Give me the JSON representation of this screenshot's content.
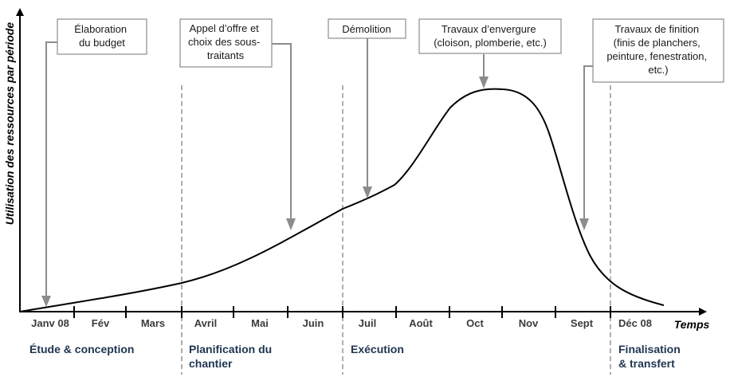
{
  "y_axis_title": "Utilisation des ressources par période",
  "x_axis_title": "Temps",
  "months": [
    "Janv 08",
    "Fév",
    "Mars",
    "Avril",
    "Mai",
    "Juin",
    "Juil",
    "Août",
    "Oct",
    "Nov",
    "Sept",
    "Déc 08"
  ],
  "phases": [
    {
      "lines": [
        "Étude & conception"
      ]
    },
    {
      "lines": [
        "Planification du",
        "chantier"
      ]
    },
    {
      "lines": [
        "Exécution"
      ]
    },
    {
      "lines": [
        "Finalisation",
        "& transfert"
      ]
    }
  ],
  "annotations": [
    {
      "lines": [
        "Élaboration",
        "du budget"
      ]
    },
    {
      "lines": [
        "Appel d’offre et",
        "choix des sous-",
        "traitants"
      ]
    },
    {
      "lines": [
        "Démolition"
      ]
    },
    {
      "lines": [
        "Travaux d’envergure",
        "(cloison, plomberie, etc.)"
      ]
    },
    {
      "lines": [
        "Travaux de finition",
        "(finis de planchers,",
        "peinture, fenestration,",
        "etc.)"
      ]
    }
  ],
  "colors": {
    "phase_text": "#1f3550",
    "arrows": "#8c8c8c",
    "dividers": "#9a9a9a",
    "curve": "#000000"
  }
}
